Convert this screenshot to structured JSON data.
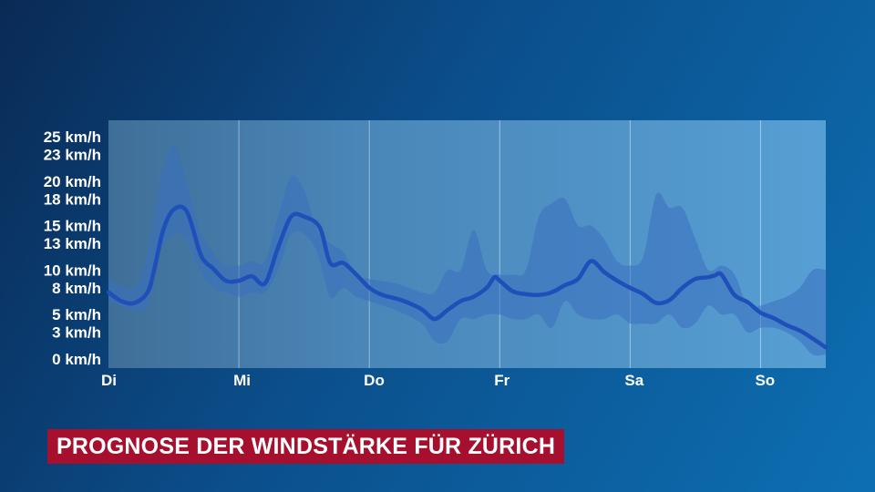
{
  "colors": {
    "plot_background": "#4f94c9",
    "band": "#3a6fbf",
    "line": "#1f4fb8",
    "title_background": "#a6102e",
    "text": "#ffffff"
  },
  "title": "PROGNOSE DER WINDSTÄRKE FÜR ZÜRICH",
  "chart_data": {
    "type": "line",
    "title": "PROGNOSE DER WINDSTÄRKE FÜR ZÜRICH",
    "xlabel": "",
    "ylabel": "",
    "unit": "km/h",
    "grid": true,
    "xlim": [
      0,
      5.5
    ],
    "ylim": [
      0,
      26.5
    ],
    "y_ticks": [
      0,
      3,
      5,
      8,
      10,
      13,
      15,
      18,
      20,
      23,
      25
    ],
    "y_tick_labels": [
      "0 km/h",
      "3 km/h",
      "5 km/h",
      "8 km/h",
      "10 km/h",
      "13 km/h",
      "15 km/h",
      "18 km/h",
      "20 km/h",
      "23 km/h",
      "25 km/h"
    ],
    "x_ticks": [
      0,
      1,
      2,
      3,
      4,
      5
    ],
    "x_tick_labels": [
      "Di",
      "Mi",
      "Do",
      "Fr",
      "Sa",
      "So"
    ],
    "series": [
      {
        "kind": "line",
        "x": [
          0,
          0.1,
          0.2,
          0.3,
          0.35,
          0.42,
          0.5,
          0.6,
          0.7,
          0.75,
          0.8,
          0.9,
          1.0,
          1.1,
          1.2,
          1.3,
          1.4,
          1.5,
          1.62,
          1.7,
          1.8,
          1.9,
          2.0,
          2.1,
          2.25,
          2.4,
          2.5,
          2.6,
          2.7,
          2.8,
          2.9,
          2.96,
          3.0,
          3.1,
          3.2,
          3.3,
          3.4,
          3.5,
          3.6,
          3.7,
          3.8,
          3.9,
          4.0,
          4.1,
          4.2,
          4.3,
          4.4,
          4.5,
          4.6,
          4.65,
          4.7,
          4.8,
          4.9,
          5.0,
          5.1,
          5.2,
          5.3,
          5.4,
          5.5
        ],
        "y": [
          7.5,
          6.5,
          6.3,
          7.5,
          10,
          14.5,
          16.8,
          16.6,
          12,
          10.8,
          10.2,
          8.8,
          8.8,
          9.3,
          8.5,
          12.5,
          16,
          16,
          14.8,
          10.8,
          10.8,
          9.5,
          8,
          7.2,
          6.6,
          5.6,
          4.5,
          5.5,
          6.5,
          7,
          8,
          9.2,
          8.8,
          7.6,
          7.3,
          7.2,
          7.5,
          8.3,
          9,
          11,
          9.8,
          8.8,
          8,
          7.3,
          6.3,
          6.6,
          8,
          9,
          9.2,
          9.4,
          9.5,
          7.2,
          6.4,
          5.2,
          4.6,
          3.8,
          3.2,
          2.3,
          1.3
        ]
      },
      {
        "kind": "band_upper",
        "x": [
          0,
          0.2,
          0.3,
          0.4,
          0.5,
          0.6,
          0.7,
          0.8,
          0.9,
          1.0,
          1.1,
          1.2,
          1.3,
          1.4,
          1.5,
          1.6,
          1.7,
          1.8,
          1.9,
          2.0,
          2.2,
          2.4,
          2.5,
          2.6,
          2.7,
          2.8,
          2.9,
          3.0,
          3.1,
          3.2,
          3.3,
          3.4,
          3.5,
          3.6,
          3.7,
          3.8,
          3.9,
          4.0,
          4.1,
          4.2,
          4.3,
          4.4,
          4.5,
          4.6,
          4.7,
          4.8,
          4.9,
          5.0,
          5.1,
          5.2,
          5.3,
          5.4,
          5.5
        ],
        "y": [
          9,
          8,
          12,
          20,
          24,
          20,
          14.5,
          12,
          10.5,
          10.5,
          11,
          11,
          16,
          20.5,
          19,
          14.5,
          13,
          12,
          9.5,
          9,
          8.5,
          7.5,
          7.5,
          10,
          10,
          14.5,
          10,
          9.5,
          9.5,
          10,
          16,
          17.5,
          18,
          15,
          15,
          13.5,
          11,
          10.5,
          11.5,
          18.5,
          17,
          17,
          13.5,
          10,
          10.5,
          9.5,
          6,
          6,
          6.5,
          7,
          8,
          10,
          10
        ]
      },
      {
        "kind": "band_lower",
        "x": [
          0,
          0.2,
          0.3,
          0.4,
          0.5,
          0.6,
          0.7,
          0.8,
          0.9,
          1.0,
          1.1,
          1.2,
          1.3,
          1.4,
          1.5,
          1.6,
          1.7,
          1.8,
          1.9,
          2.0,
          2.2,
          2.4,
          2.5,
          2.6,
          2.7,
          2.8,
          2.9,
          3.0,
          3.1,
          3.2,
          3.3,
          3.4,
          3.5,
          3.6,
          3.7,
          3.8,
          3.9,
          4.0,
          4.1,
          4.2,
          4.3,
          4.4,
          4.5,
          4.6,
          4.7,
          4.8,
          4.9,
          5.0,
          5.1,
          5.2,
          5.3,
          5.4,
          5.5
        ],
        "y": [
          6.5,
          5.5,
          6,
          12,
          14,
          13.5,
          10,
          8,
          7.5,
          7,
          7.5,
          7.5,
          10,
          14,
          14,
          12,
          7,
          8,
          7,
          6.5,
          5.5,
          4,
          2,
          2,
          4.5,
          4.5,
          5,
          5,
          4.5,
          4.5,
          5,
          3.5,
          6.5,
          5,
          4.5,
          4.5,
          5,
          4,
          4,
          4,
          5,
          3.5,
          4,
          6,
          5,
          5,
          3,
          3.5,
          3.5,
          3,
          2,
          0.5,
          0.5
        ]
      }
    ]
  }
}
